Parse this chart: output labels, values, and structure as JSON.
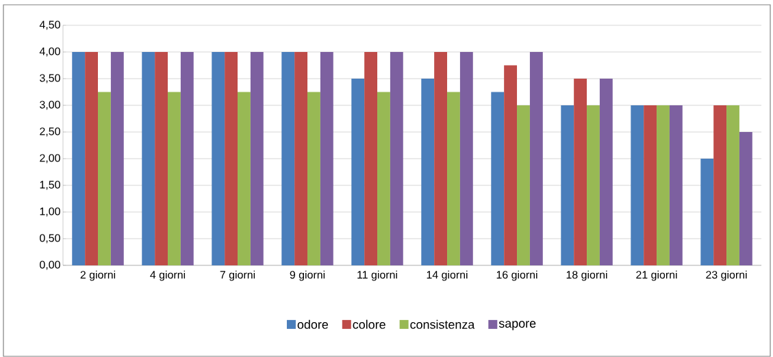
{
  "chart_data": {
    "type": "bar",
    "categories": [
      "2 giorni",
      "4 giorni",
      "7 giorni",
      "9 giorni",
      "11 giorni",
      "14 giorni",
      "16 giorni",
      "18 giorni",
      "21 giorni",
      "23 giorni"
    ],
    "series": [
      {
        "name": "odore",
        "color": "#4a7ebb",
        "values": [
          4,
          4,
          4,
          4,
          3.5,
          3.5,
          3.25,
          3,
          3,
          2
        ]
      },
      {
        "name": "colore",
        "color": "#be4b48",
        "values": [
          4,
          4,
          4,
          4,
          4,
          4,
          3.75,
          3.5,
          3,
          3
        ]
      },
      {
        "name": "consistenza",
        "color": "#98b954",
        "values": [
          3.25,
          3.25,
          3.25,
          3.25,
          3.25,
          3.25,
          3,
          3,
          3,
          3
        ]
      },
      {
        "name": "sapore",
        "color": "#7d60a0",
        "values": [
          4,
          4,
          4,
          4,
          4,
          4,
          4,
          3.5,
          3,
          2.5
        ]
      }
    ],
    "ylim": [
      0,
      4.5
    ],
    "yticks": [
      {
        "value": 0,
        "label": "0,00"
      },
      {
        "value": 0.5,
        "label": "0,50"
      },
      {
        "value": 1,
        "label": "1,00"
      },
      {
        "value": 1.5,
        "label": "1,50"
      },
      {
        "value": 2,
        "label": "2,00"
      },
      {
        "value": 2.5,
        "label": "2,50"
      },
      {
        "value": 3,
        "label": "3,00"
      },
      {
        "value": 3.5,
        "label": "3,50"
      },
      {
        "value": 4,
        "label": "4,00"
      },
      {
        "value": 4.5,
        "label": "4,50"
      }
    ],
    "grid": "y",
    "legend": "bottom"
  }
}
